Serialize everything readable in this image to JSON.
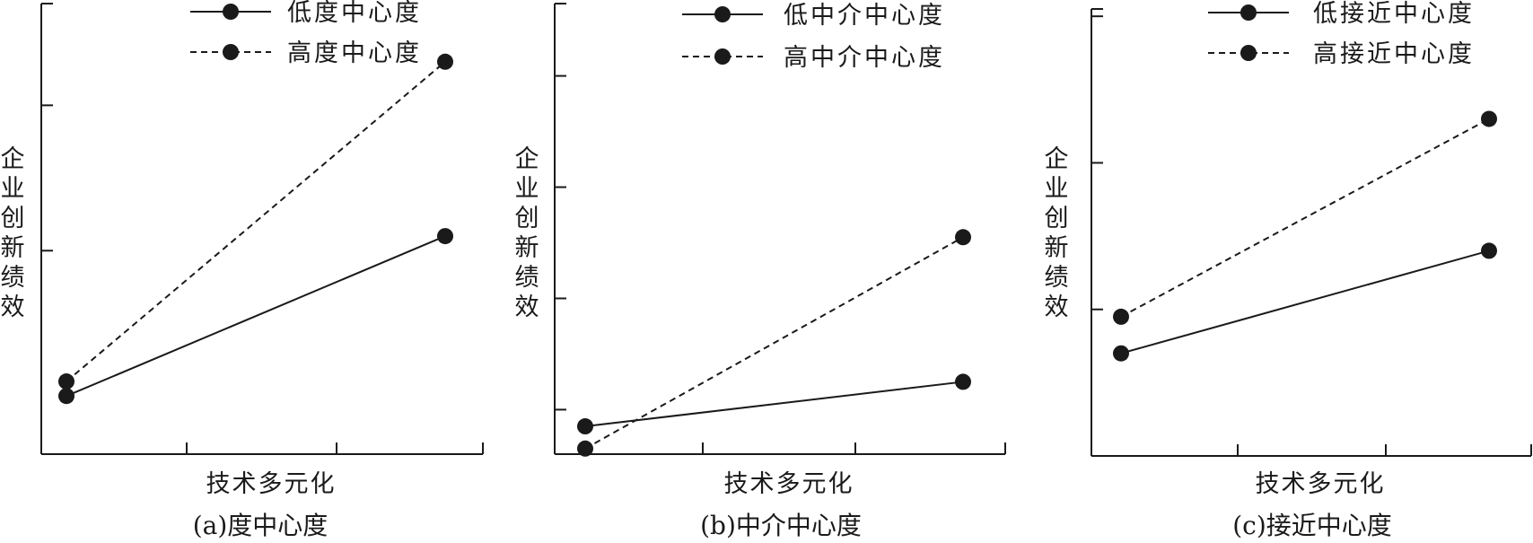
{
  "chart_data": [
    {
      "type": "line",
      "caption": "(a)度中心度",
      "xlabel": "技术多元化",
      "ylabel": "企业创新绩效",
      "x": [
        "",
        ""
      ],
      "series": [
        {
          "name": "低度中心度",
          "style": "solid",
          "values": [
            -1.0,
            0.1
          ]
        },
        {
          "name": "高度中心度",
          "style": "dashed",
          "values": [
            -0.9,
            1.3
          ]
        }
      ],
      "ylim": [
        -1.4,
        1.7
      ],
      "y_ticks": [
        0,
        1
      ]
    },
    {
      "type": "line",
      "caption": "(b)中介中心度",
      "xlabel": "技术多元化",
      "ylabel": "企业创新绩效",
      "x": [
        "",
        ""
      ],
      "series": [
        {
          "name": "低中介中心度",
          "style": "solid",
          "values": [
            -0.9,
            -0.5
          ]
        },
        {
          "name": "高中介中心度",
          "style": "dashed",
          "values": [
            -1.1,
            0.8
          ]
        }
      ],
      "ylim": [
        -1.15,
        2.9
      ],
      "y_ticks": [
        -0.75,
        0.25,
        1.25,
        2.25
      ]
    },
    {
      "type": "line",
      "caption": "(c)接近中心度",
      "xlabel": "技术多元化",
      "ylabel": "企业创新绩效",
      "x": [
        "",
        ""
      ],
      "series": [
        {
          "name": "低接近中心度",
          "style": "solid",
          "values": [
            -0.3,
            0.4
          ]
        },
        {
          "name": "高接近中心度",
          "style": "dashed",
          "values": [
            -0.05,
            1.3
          ]
        }
      ],
      "ylim": [
        -1.0,
        2.05
      ],
      "y_ticks": [
        0,
        1,
        2
      ]
    }
  ],
  "colors": {
    "ink": "#1a1a1a",
    "background": "#ffffff"
  }
}
